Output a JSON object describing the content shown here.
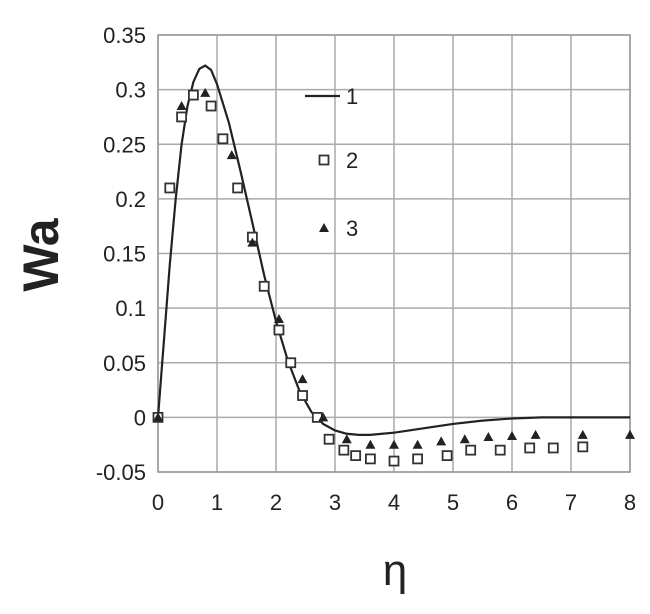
{
  "chart_data": {
    "type": "line_scatter",
    "xlabel": "η",
    "ylabel": "Wa",
    "xlim": [
      0,
      8
    ],
    "ylim": [
      -0.05,
      0.35
    ],
    "xticks": [
      0,
      1,
      2,
      3,
      4,
      5,
      6,
      7,
      8
    ],
    "yticks": [
      -0.05,
      0,
      0.05,
      0.1,
      0.15,
      0.2,
      0.25,
      0.3,
      0.35
    ],
    "grid": true,
    "series": [
      {
        "name": "1",
        "color": "#222222",
        "marker": "line",
        "x": [
          0,
          0.1,
          0.2,
          0.3,
          0.4,
          0.5,
          0.6,
          0.7,
          0.8,
          0.9,
          1.0,
          1.2,
          1.4,
          1.6,
          1.8,
          2.0,
          2.2,
          2.4,
          2.6,
          2.8,
          3.0,
          3.2,
          3.4,
          3.6,
          3.8,
          4.0,
          4.5,
          5.0,
          5.5,
          6.0,
          6.5,
          7.0,
          7.5,
          8.0
        ],
        "values": [
          0,
          0.07,
          0.14,
          0.2,
          0.25,
          0.285,
          0.307,
          0.319,
          0.322,
          0.318,
          0.305,
          0.27,
          0.225,
          0.178,
          0.13,
          0.088,
          0.052,
          0.024,
          0.005,
          -0.006,
          -0.012,
          -0.015,
          -0.016,
          -0.016,
          -0.015,
          -0.014,
          -0.01,
          -0.006,
          -0.003,
          -0.001,
          0,
          0,
          0,
          0
        ]
      },
      {
        "name": "2",
        "color": "#333333",
        "marker": "square",
        "x": [
          0,
          0.2,
          0.4,
          0.6,
          0.9,
          1.1,
          1.35,
          1.6,
          1.8,
          2.05,
          2.25,
          2.45,
          2.7,
          2.9,
          3.15,
          3.35,
          3.6,
          4.0,
          4.4,
          4.9,
          5.3,
          5.8,
          6.3,
          6.7,
          7.2
        ],
        "values": [
          0,
          0.21,
          0.275,
          0.295,
          0.285,
          0.255,
          0.21,
          0.165,
          0.12,
          0.08,
          0.05,
          0.02,
          0,
          -0.02,
          -0.03,
          -0.035,
          -0.038,
          -0.04,
          -0.038,
          -0.035,
          -0.03,
          -0.03,
          -0.028,
          -0.028,
          -0.027
        ]
      },
      {
        "name": "3",
        "color": "#222222",
        "marker": "triangle",
        "x": [
          0,
          0.4,
          0.8,
          1.25,
          1.6,
          2.05,
          2.45,
          2.8,
          3.2,
          3.6,
          4.0,
          4.4,
          4.8,
          5.2,
          5.6,
          6.0,
          6.4,
          7.2,
          8.0
        ],
        "values": [
          0,
          0.285,
          0.297,
          0.24,
          0.16,
          0.09,
          0.035,
          0,
          -0.02,
          -0.025,
          -0.025,
          -0.025,
          -0.022,
          -0.02,
          -0.018,
          -0.017,
          -0.016,
          -0.016,
          -0.016
        ]
      }
    ]
  }
}
